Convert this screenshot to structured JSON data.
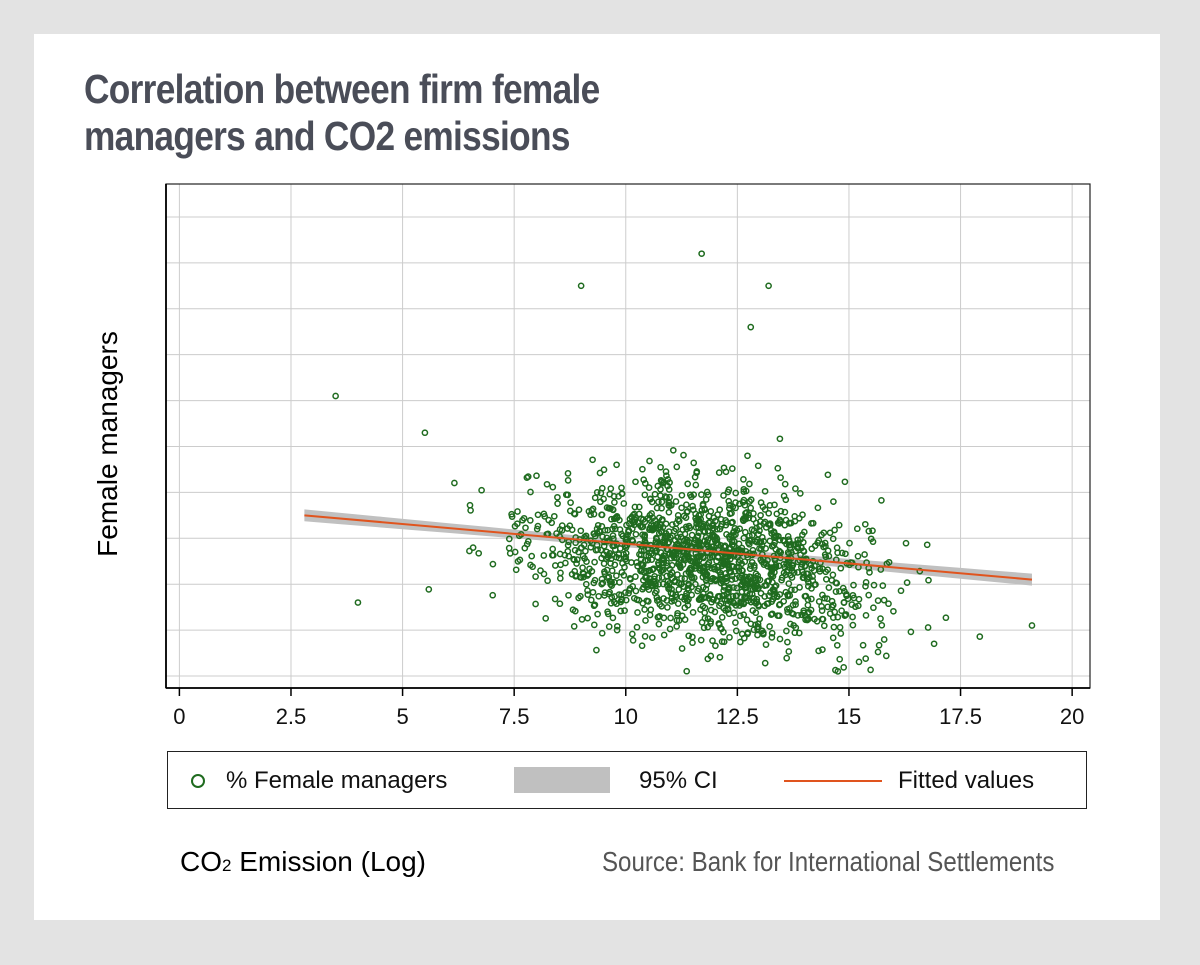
{
  "title": {
    "line1": "Correlation between firm female",
    "line2": "managers and CO2 emissions"
  },
  "colors": {
    "title": "#4a4d58",
    "points": "#1f6b1f",
    "ci_band": "#c0c0c0",
    "fitted": "#e0541e",
    "grid": "#cccccc"
  },
  "chart_data": {
    "type": "scatter",
    "title": "Correlation between firm female managers and CO2 emissions",
    "xlabel": "CO₂ Emission (Log)",
    "ylabel": "Female managers",
    "xlim": [
      -0.3,
      20.4
    ],
    "xticks": [
      0,
      2.5,
      5,
      7.5,
      10,
      12.5,
      15,
      17.5,
      20
    ],
    "xtick_labels": [
      "0",
      "2.5",
      "5",
      "7.5",
      "10",
      "12.5",
      "15",
      "17.5",
      "20"
    ],
    "y_tick_labels_shown": false,
    "y_gridlines": 11,
    "grid": true,
    "series": [
      {
        "name": "% Female managers",
        "kind": "scatter",
        "points_estimated": 1600,
        "x_range": [
          2.8,
          19.1
        ],
        "outliers": [
          {
            "x": 3.5,
            "y": 6.1
          },
          {
            "x": 4.0,
            "y": 1.6
          },
          {
            "x": 5.5,
            "y": 5.3
          },
          {
            "x": 9.0,
            "y": 8.5
          },
          {
            "x": 11.7,
            "y": 9.2
          },
          {
            "x": 12.8,
            "y": 7.6
          },
          {
            "x": 13.2,
            "y": 8.5
          },
          {
            "x": 19.1,
            "y": 1.1
          }
        ]
      },
      {
        "name": "95% CI",
        "kind": "band"
      },
      {
        "name": "Fitted values",
        "kind": "line",
        "x": [
          2.8,
          19.1
        ],
        "y": [
          3.5,
          2.1
        ]
      }
    ],
    "legend": {
      "position": "bottom",
      "entries": [
        "% Female managers",
        "95% CI",
        "Fitted values"
      ]
    }
  },
  "legend_labels": {
    "points": "% Female managers",
    "ci": "95% CI",
    "fitted": "Fitted values"
  },
  "footer": {
    "xlabel_main": "CO",
    "xlabel_sub": "2",
    "xlabel_rest": " Emission (Log)",
    "source": "Source: Bank for International Settlements"
  }
}
